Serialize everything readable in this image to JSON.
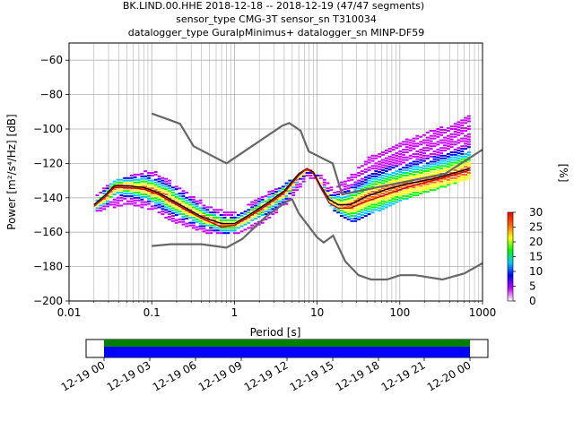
{
  "chart_data": [
    {
      "type": "heatmap",
      "title": "BK.LIND.00.HHE   2018-12-18 -- 2018-12-19  (47/47 segments)",
      "subtitle1": "sensor_type CMG-3T sensor_sn T310034",
      "subtitle2": "datalogger_type GuralpMinimus+ datalogger_sn MINP-DF59",
      "xlabel": "Period [s]",
      "ylabel": "Power [m²/s⁴/Hz] [dB]",
      "xscale": "log",
      "xlim": [
        0.01,
        1000
      ],
      "ylim": [
        -200,
        -50
      ],
      "grid": true,
      "x_ticks": [
        {
          "value": 0.01,
          "label": "0.01"
        },
        {
          "value": 0.1,
          "label": "0.1"
        },
        {
          "value": 1,
          "label": "1"
        },
        {
          "value": 10,
          "label": "10"
        },
        {
          "value": 100,
          "label": "100"
        },
        {
          "value": 1000,
          "label": "1000"
        }
      ],
      "y_ticks": [
        {
          "value": -60,
          "label": "−60"
        },
        {
          "value": -80,
          "label": "−80"
        },
        {
          "value": -100,
          "label": "−100"
        },
        {
          "value": -120,
          "label": "−120"
        },
        {
          "value": -140,
          "label": "−140"
        },
        {
          "value": -160,
          "label": "−160"
        },
        {
          "value": -180,
          "label": "−180"
        },
        {
          "value": -200,
          "label": "−200"
        }
      ],
      "series": [
        {
          "role": "noise-model-high",
          "color": "#666666",
          "points": [
            [
              0.1,
              -91
            ],
            [
              0.22,
              -97
            ],
            [
              0.32,
              -110
            ],
            [
              0.8,
              -120
            ],
            [
              3.8,
              -98
            ],
            [
              4.6,
              -96.5
            ],
            [
              6.3,
              -101
            ],
            [
              7.9,
              -113
            ],
            [
              15.4,
              -120
            ],
            [
              20,
              -138
            ],
            [
              354,
              -126
            ],
            [
              1000,
              -112
            ]
          ]
        },
        {
          "role": "noise-model-low",
          "color": "#666666",
          "points": [
            [
              0.1,
              -168
            ],
            [
              0.17,
              -167
            ],
            [
              0.4,
              -167
            ],
            [
              0.8,
              -169
            ],
            [
              1.24,
              -164
            ],
            [
              2.4,
              -151
            ],
            [
              4.3,
              -142
            ],
            [
              5,
              -141
            ],
            [
              6,
              -149
            ],
            [
              10,
              -163
            ],
            [
              12,
              -166
            ],
            [
              15.6,
              -162
            ],
            [
              21.9,
              -177
            ],
            [
              31.6,
              -185
            ],
            [
              45,
              -187.5
            ],
            [
              70,
              -187.5
            ],
            [
              101,
              -185
            ],
            [
              154,
              -185
            ],
            [
              328,
              -187.5
            ],
            [
              600,
              -184
            ],
            [
              1000,
              -178
            ]
          ]
        },
        {
          "role": "mean",
          "color": "#000000",
          "points": [
            [
              0.02,
              -144
            ],
            [
              0.028,
              -138
            ],
            [
              0.035,
              -133
            ],
            [
              0.05,
              -133
            ],
            [
              0.08,
              -134
            ],
            [
              0.12,
              -137
            ],
            [
              0.2,
              -143
            ],
            [
              0.4,
              -151
            ],
            [
              0.7,
              -155
            ],
            [
              1,
              -155
            ],
            [
              1.5,
              -150
            ],
            [
              2.5,
              -143
            ],
            [
              4,
              -136
            ],
            [
              6,
              -126
            ],
            [
              7.5,
              -123
            ],
            [
              9,
              -125
            ],
            [
              11,
              -133
            ],
            [
              14,
              -141
            ],
            [
              18,
              -144
            ],
            [
              25,
              -144
            ],
            [
              40,
              -139
            ],
            [
              70,
              -135
            ],
            [
              120,
              -132
            ],
            [
              250,
              -129
            ],
            [
              500,
              -125
            ],
            [
              700,
              -123
            ]
          ]
        },
        {
          "role": "mode",
          "color": "#cc0000",
          "points": [
            [
              0.02,
              -145
            ],
            [
              0.028,
              -139
            ],
            [
              0.035,
              -134
            ],
            [
              0.05,
              -134
            ],
            [
              0.08,
              -135
            ],
            [
              0.12,
              -138
            ],
            [
              0.2,
              -144
            ],
            [
              0.4,
              -152
            ],
            [
              0.7,
              -157
            ],
            [
              1,
              -156
            ],
            [
              1.5,
              -151
            ],
            [
              2.5,
              -144
            ],
            [
              4,
              -137
            ],
            [
              6,
              -127
            ],
            [
              7.5,
              -123
            ],
            [
              9,
              -126
            ],
            [
              11,
              -134
            ],
            [
              14,
              -143
            ],
            [
              18,
              -146
            ],
            [
              25,
              -146
            ],
            [
              40,
              -142
            ],
            [
              70,
              -138
            ],
            [
              120,
              -134
            ],
            [
              250,
              -130
            ],
            [
              500,
              -126
            ],
            [
              700,
              -124
            ]
          ]
        }
      ],
      "colorbar": {
        "label": "[%]",
        "min": 0,
        "max": 30,
        "ticks": [
          "0",
          "5",
          "10",
          "15",
          "20",
          "25",
          "30"
        ],
        "colormap": [
          "#ffffff",
          "#c800ff",
          "#0000ff",
          "#00c8ff",
          "#00ff00",
          "#ffff00",
          "#ff6400",
          "#ff0000"
        ]
      },
      "density_bands": [
        {
          "upper": [
            [
              0.02,
              -140
            ],
            [
              0.03,
              -130
            ],
            [
              0.05,
              -127
            ],
            [
              0.1,
              -124
            ],
            [
              0.2,
              -133
            ],
            [
              0.5,
              -146
            ],
            [
              1,
              -148
            ],
            [
              2,
              -140
            ],
            [
              4,
              -131
            ],
            [
              7,
              -123
            ],
            [
              10,
              -125
            ],
            [
              15,
              -135
            ],
            [
              25,
              -126
            ],
            [
              50,
              -113
            ],
            [
              100,
              -107
            ],
            [
              300,
              -99
            ],
            [
              700,
              -92
            ]
          ],
          "lower": [
            [
              0.02,
              -147
            ],
            [
              0.03,
              -145
            ],
            [
              0.05,
              -142
            ],
            [
              0.1,
              -146
            ],
            [
              0.2,
              -154
            ],
            [
              0.5,
              -160
            ],
            [
              1,
              -160
            ],
            [
              2,
              -154
            ],
            [
              4,
              -143
            ],
            [
              7,
              -128
            ],
            [
              10,
              -128
            ],
            [
              15,
              -146
            ],
            [
              25,
              -153
            ],
            [
              50,
              -147
            ],
            [
              100,
              -140
            ],
            [
              300,
              -133
            ],
            [
              700,
              -127
            ]
          ]
        }
      ]
    },
    {
      "type": "timeline",
      "x_ticks": [
        "12-19 00",
        "12-19 03",
        "12-19 06",
        "12-19 09",
        "12-19 12",
        "12-19 15",
        "12-19 18",
        "12-19 21",
        "12-20 00"
      ],
      "colors": {
        "coverage_top": "#008000",
        "coverage_bottom": "#0000ff"
      }
    }
  ]
}
